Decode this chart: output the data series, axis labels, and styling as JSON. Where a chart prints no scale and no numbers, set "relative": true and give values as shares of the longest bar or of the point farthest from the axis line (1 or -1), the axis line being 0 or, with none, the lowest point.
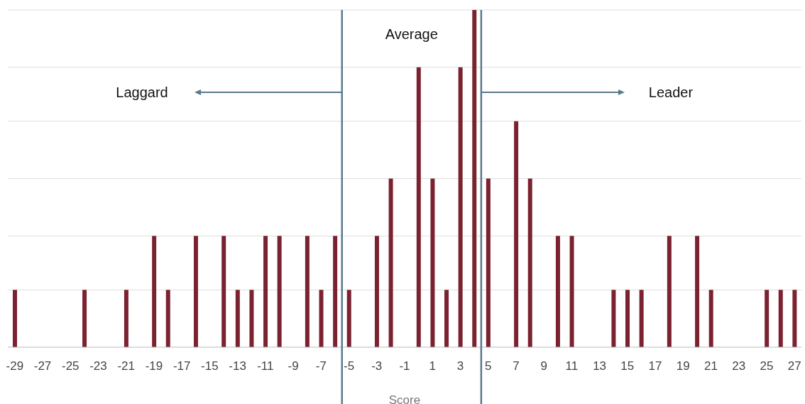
{
  "chart_data": {
    "type": "bar",
    "relative": true,
    "xlabel": "Score",
    "x": [
      -29,
      -24,
      -21,
      -19,
      -18,
      -16,
      -14,
      -13,
      -12,
      -11,
      -10,
      -8,
      -7,
      -6,
      -5,
      -3,
      -2,
      0,
      1,
      2,
      3,
      4,
      5,
      7,
      8,
      10,
      11,
      14,
      15,
      16,
      18,
      20,
      21,
      25,
      26,
      27
    ],
    "values": [
      0.17,
      0.17,
      0.17,
      0.33,
      0.17,
      0.33,
      0.33,
      0.17,
      0.17,
      0.33,
      0.33,
      0.33,
      0.17,
      0.33,
      0.17,
      0.33,
      0.5,
      0.83,
      0.5,
      0.17,
      0.83,
      1,
      0.5,
      0.67,
      0.5,
      0.33,
      0.33,
      0.17,
      0.17,
      0.17,
      0.33,
      0.33,
      0.17,
      0.17,
      0.17,
      0.17
    ],
    "color": "#7b2230",
    "xlim": [
      -29.5,
      27.5
    ],
    "xticks": [
      -29,
      -27,
      -25,
      -23,
      -21,
      -19,
      -17,
      -15,
      -13,
      -11,
      -9,
      -7,
      -5,
      -3,
      -1,
      1,
      3,
      5,
      7,
      9,
      11,
      13,
      15,
      17,
      19,
      21,
      23,
      25,
      27
    ],
    "grid": "y",
    "ref_lines": [
      {
        "axis": "x",
        "value": -5.5,
        "color": "#5a7a8c"
      },
      {
        "axis": "x",
        "value": 4.5,
        "color": "#5a7a8c"
      }
    ],
    "annotations": [
      "Average",
      "Laggard",
      "Leader"
    ]
  }
}
